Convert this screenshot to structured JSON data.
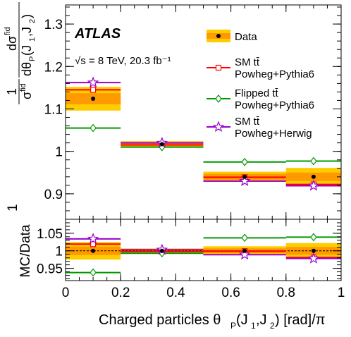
{
  "chart_data": {
    "type": "step",
    "experiment_label": "ATLAS",
    "energy_label": "√s = 8 TeV, 20.3 fb⁻¹",
    "xlabel_main": {
      "main": "Charged particles θ",
      "sub1": "P",
      "mid": "(J",
      "sub2": "1",
      "comma": ",J",
      "sub3": "2",
      "end": ") [rad]/π"
    },
    "ylabel_top": {
      "numerator": "1",
      "denominator": "σ",
      "denominator_sup": "fid",
      "frac_num": "dσ",
      "frac_num_sup": "fid",
      "frac_den": "dθ",
      "frac_den_sub": "P",
      "frac_den_tail": "(J",
      "j1": "1",
      "comma": ",J",
      "j2": "2",
      "close": ")"
    },
    "ylabel_ratio": "MC/Data",
    "bins": [
      [
        0,
        0.2
      ],
      [
        0.2,
        0.5
      ],
      [
        0.5,
        0.8
      ],
      [
        0.8,
        1.0
      ]
    ],
    "bin_centers": [
      0.1,
      0.35,
      0.65,
      0.9
    ],
    "xlim": [
      0,
      1
    ],
    "xticks": [
      "0",
      "0.2",
      "0.4",
      "0.6",
      "0.8",
      "1"
    ],
    "xtick_values": [
      0,
      0.2,
      0.4,
      0.6,
      0.8,
      1.0
    ],
    "top_panel": {
      "ylim": [
        0.84,
        1.345
      ],
      "yticks": [
        "0.9",
        "1",
        "1.1",
        "1.2",
        "1.3"
      ],
      "ytick_values": [
        0.9,
        1.0,
        1.1,
        1.2,
        1.3
      ],
      "data": {
        "name": "Data",
        "values": [
          1.124,
          1.017,
          0.94,
          0.94
        ],
        "unc_total": [
          0.028,
          0.007,
          0.012,
          0.021
        ],
        "unc_inner": [
          0.013,
          0.003,
          0.007,
          0.01
        ]
      },
      "series": [
        {
          "name": "SM tt̄",
          "generator": "Powheg+Pythia6",
          "color": "#ff0000",
          "marker": "square",
          "values": [
            1.145,
            1.015,
            0.939,
            0.922
          ]
        },
        {
          "name": "Flipped tt̄",
          "generator": "Powheg+Pythia6",
          "color": "#009900",
          "marker": "diamond",
          "values": [
            1.055,
            1.01,
            0.975,
            0.977
          ]
        },
        {
          "name": "SM tt̄",
          "generator": "Powheg+Herwig",
          "color": "#9900cc",
          "marker": "star",
          "values": [
            1.162,
            1.02,
            0.93,
            0.919
          ]
        }
      ]
    },
    "ratio_panel": {
      "ylim": [
        0.915,
        1.09
      ],
      "yticks": [
        "0.95",
        "1",
        "1.05"
      ],
      "ytick_values": [
        0.95,
        1.0,
        1.05
      ],
      "data_unc_total": [
        0.025,
        0.007,
        0.013,
        0.022
      ],
      "data_unc_inner": [
        0.012,
        0.003,
        0.007,
        0.011
      ],
      "series": [
        {
          "color": "#ff0000",
          "marker": "square",
          "values": [
            1.019,
            0.998,
            0.999,
            0.981
          ]
        },
        {
          "color": "#009900",
          "marker": "diamond",
          "values": [
            0.938,
            0.993,
            1.037,
            1.039
          ]
        },
        {
          "color": "#9900cc",
          "marker": "star",
          "values": [
            1.034,
            1.003,
            0.989,
            0.978
          ]
        }
      ]
    },
    "legend": {
      "placement": "top-right",
      "data_label": "Data",
      "data_color": "#ffcc00",
      "data_inner_color": "#ff9900",
      "entries": [
        {
          "line1": "SM tt̄",
          "line2": "Powheg+Pythia6",
          "color": "#ff0000",
          "marker": "square"
        },
        {
          "line1": "Flipped tt̄",
          "line2": "Powheg+Pythia6",
          "color": "#009900",
          "marker": "diamond"
        },
        {
          "line1": "SM tt̄",
          "line2": "Powheg+Herwig",
          "color": "#9900cc",
          "marker": "star"
        }
      ]
    }
  }
}
